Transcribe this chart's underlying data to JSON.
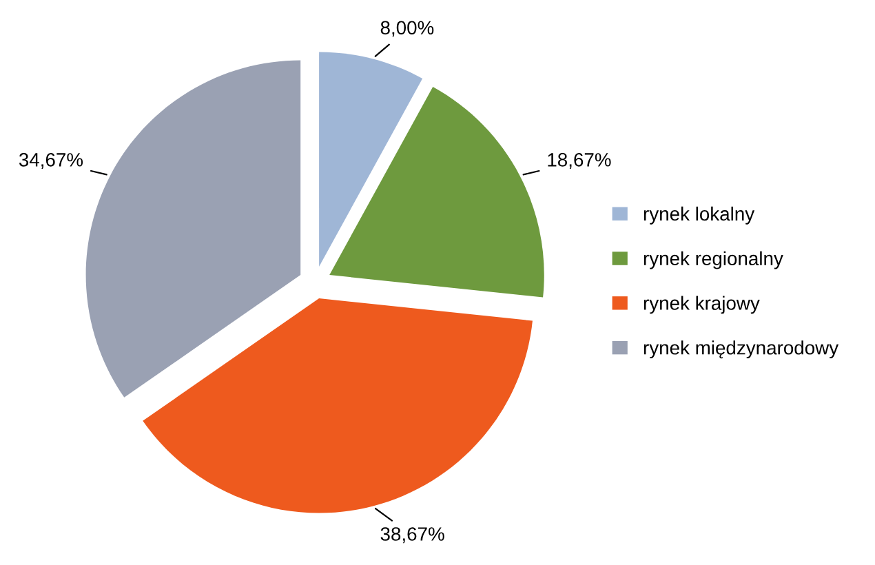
{
  "chart_data": {
    "type": "pie",
    "categories": [
      "rynek lokalny",
      "rynek regionalny",
      "rynek krajowy",
      "rynek międzynarodowy"
    ],
    "values": [
      8.0,
      18.67,
      38.67,
      34.67
    ],
    "value_labels": [
      "8,00%",
      "18,67%",
      "38,67%",
      "34,67%"
    ],
    "colors": [
      "#9fb6d6",
      "#6e9a3e",
      "#ee5a1e",
      "#9aa1b3"
    ],
    "legend": "right"
  }
}
